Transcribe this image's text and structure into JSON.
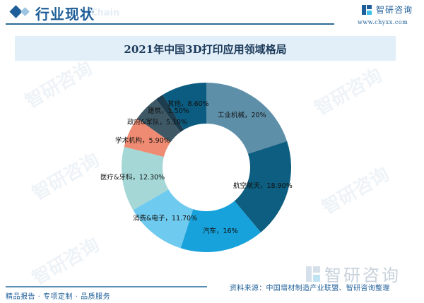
{
  "header": {
    "section_title": "行业现状",
    "ghost_text": "Chain",
    "brand_name": "智研咨询",
    "brand_url": "www.chyxx.com"
  },
  "footer": {
    "tagline": "精品报告 · 专项定制 · 品质服务",
    "brand_name": "智研咨询",
    "source": "资料来源：中国增材制造产业联盟、智研咨询整理"
  },
  "watermark_text": "智研咨询",
  "chart_data": {
    "type": "pie",
    "subtype": "donut",
    "title": "2021年中国3D打印应用领域格局",
    "categories": [
      "工业机械",
      "航空航天",
      "汽车",
      "消费&电子",
      "医疗&牙科",
      "学术机构",
      "政府&军队",
      "建筑",
      "其他"
    ],
    "values": [
      20,
      18.9,
      16,
      11.7,
      12.3,
      5.9,
      5.1,
      1.5,
      8.6
    ],
    "value_labels": [
      "20%",
      "18.90%",
      "16%",
      "11.70%",
      "12.30%",
      "5.90%",
      "5.10%",
      "1.50%",
      "8.60%"
    ],
    "colors": [
      "#5e8fa9",
      "#0d5e80",
      "#18a2db",
      "#6fcaef",
      "#a4d7d6",
      "#ef8b72",
      "#3e5866",
      "#1d3d4f",
      "#0b5c80"
    ],
    "unit": "%",
    "legend": "none (labels on slices)",
    "start_angle_deg": 0,
    "direction": "clockwise"
  }
}
